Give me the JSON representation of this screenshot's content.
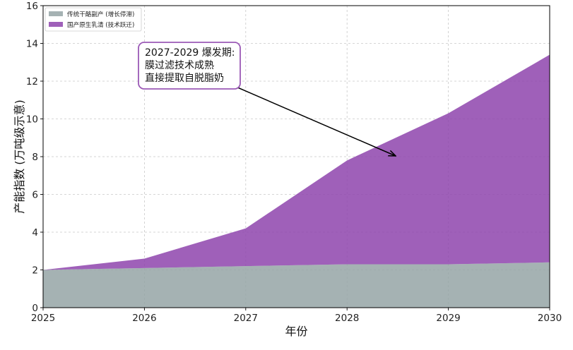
{
  "chart_data": {
    "type": "area",
    "stacked": true,
    "x": [
      2025,
      2026,
      2027,
      2028,
      2029,
      2030
    ],
    "series": [
      {
        "name": "传统干酪副产 (增长停滞)",
        "values": [
          2.0,
          2.1,
          2.2,
          2.3,
          2.3,
          2.4
        ],
        "color": "#95a5a6"
      },
      {
        "name": "国产原生乳清 (技术跃迁)",
        "values": [
          0.0,
          0.5,
          2.0,
          5.5,
          8.0,
          11.0
        ],
        "color": "#8e44ad"
      }
    ],
    "xlabel": "年份",
    "ylabel": "产能指数 (万吨级示意)",
    "xlim": [
      2025,
      2030
    ],
    "ylim": [
      0,
      16
    ],
    "xticks": [
      2025,
      2026,
      2027,
      2028,
      2029,
      2030
    ],
    "yticks": [
      0,
      2,
      4,
      6,
      8,
      10,
      12,
      14,
      16
    ],
    "grid": true,
    "legend_position": "top-left",
    "annotation": {
      "lines": [
        "2027-2029 爆发期:",
        "膜过滤技术成熟",
        "直接提取自脱脂奶"
      ],
      "border_color": "#9b59b6"
    }
  }
}
